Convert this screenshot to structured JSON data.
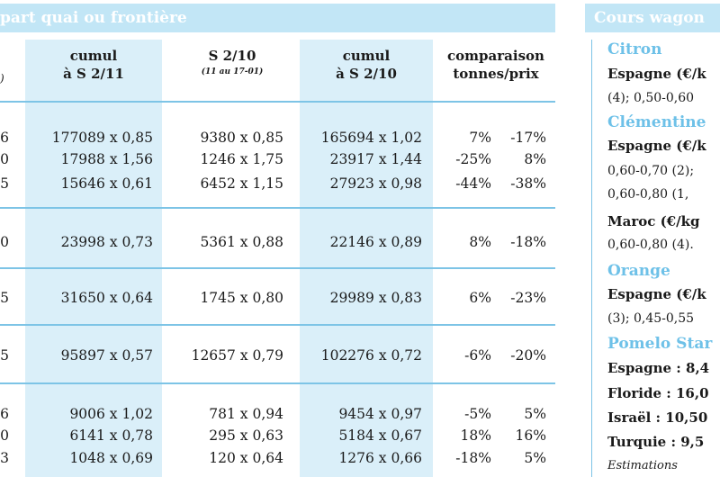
{
  "left_section": {
    "title": "part quai ou frontière",
    "header_fragment": ")",
    "columns": [
      {
        "label": "cumul",
        "label2": "à S 2/11",
        "sub": ""
      },
      {
        "label": "S 2/10",
        "label2": "",
        "sub": "(11 au 17-01)"
      },
      {
        "label": "cumul",
        "label2": "à S 2/10",
        "sub": ""
      },
      {
        "label": "comparaison",
        "label2": "tonnes/prix",
        "sub": ""
      }
    ],
    "rows": [
      {
        "edge": "6",
        "cumul_s2_11": "177089 x 0,85",
        "s2_10": "9380 x 0,85",
        "cumul_s2_10": "165694 x 1,02",
        "comp_tonnes": "7%",
        "comp_prix": "-17%"
      },
      {
        "edge": "0",
        "cumul_s2_11": "17988 x 1,56",
        "s2_10": "1246 x 1,75",
        "cumul_s2_10": "23917 x 1,44",
        "comp_tonnes": "-25%",
        "comp_prix": "8%"
      },
      {
        "edge": "5",
        "cumul_s2_11": "15646 x 0,61",
        "s2_10": "6452 x 1,15",
        "cumul_s2_10": "27923 x 0,98",
        "comp_tonnes": "-44%",
        "comp_prix": "-38%"
      },
      {
        "edge": "0",
        "cumul_s2_11": "23998 x 0,73",
        "s2_10": "5361 x 0,88",
        "cumul_s2_10": "22146 x 0,89",
        "comp_tonnes": "8%",
        "comp_prix": "-18%"
      },
      {
        "edge": "5",
        "cumul_s2_11": "31650 x 0,64",
        "s2_10": "1745 x 0,80",
        "cumul_s2_10": "29989 x 0,83",
        "comp_tonnes": "6%",
        "comp_prix": "-23%"
      },
      {
        "edge": "5",
        "cumul_s2_11": "95897 x 0,57",
        "s2_10": "12657 x 0,79",
        "cumul_s2_10": "102276 x 0,72",
        "comp_tonnes": "-6%",
        "comp_prix": "-20%"
      },
      {
        "edge": "6",
        "cumul_s2_11": "9006 x 1,02",
        "s2_10": "781 x 0,94",
        "cumul_s2_10": "9454 x 0,97",
        "comp_tonnes": "-5%",
        "comp_prix": "5%"
      },
      {
        "edge": "0",
        "cumul_s2_11": "6141 x 0,78",
        "s2_10": "295 x 0,63",
        "cumul_s2_10": "5184 x 0,67",
        "comp_tonnes": "18%",
        "comp_prix": "16%"
      },
      {
        "edge": "3",
        "cumul_s2_11": "1048 x 0,69",
        "s2_10": "120 x 0,64",
        "cumul_s2_10": "1276 x 0,66",
        "comp_tonnes": "-18%",
        "comp_prix": "5%"
      }
    ]
  },
  "right_panel": {
    "title": "Cours wagon",
    "lines": [
      {
        "style": "prod",
        "text": "Citron"
      },
      {
        "style": "bold",
        "text": "Espagne (€/k"
      },
      {
        "style": "norm",
        "text": "(4); 0,50-0,60"
      },
      {
        "style": "prod",
        "text": "Clémentine"
      },
      {
        "style": "bold",
        "text": "Espagne (€/k"
      },
      {
        "style": "norm",
        "text": "0,60-0,70 (2);"
      },
      {
        "style": "norm",
        "text": "0,60-0,80 (1,"
      },
      {
        "style": "bold",
        "text": "Maroc (€/kg"
      },
      {
        "style": "norm",
        "text": "0,60-0,80 (4)."
      },
      {
        "style": "prod",
        "text": "Orange"
      },
      {
        "style": "bold",
        "text": "Espagne (€/k"
      },
      {
        "style": "norm",
        "text": "(3); 0,45-0,55"
      },
      {
        "style": "prod",
        "text": "Pomelo Star"
      },
      {
        "style": "bold",
        "text": "Espagne : 8,4"
      },
      {
        "style": "bold",
        "text": "Floride : 16,0"
      },
      {
        "style": "bold",
        "text": "Israël : 10,50"
      },
      {
        "style": "bold",
        "text": "Turquie : 9,5"
      },
      {
        "style": "ital",
        "text": "Estimations"
      }
    ]
  }
}
